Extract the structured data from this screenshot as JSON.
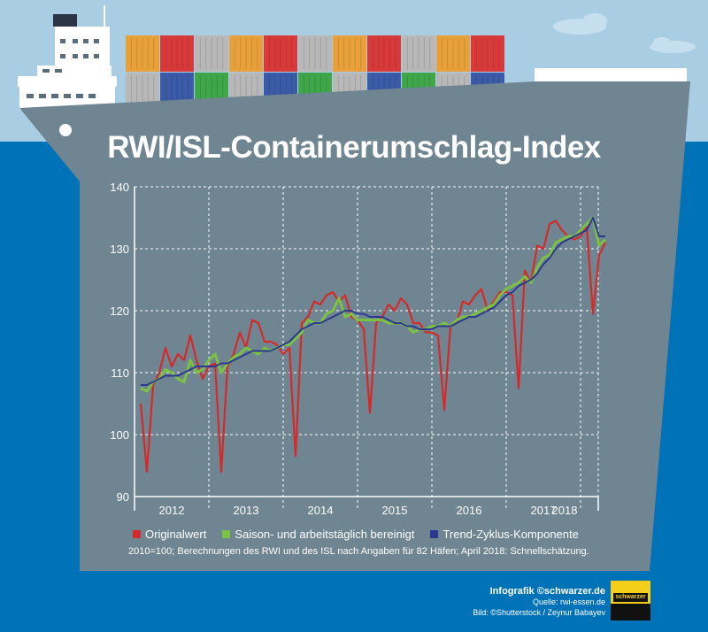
{
  "title": "RWI/ISL-Containerumschlag-Index",
  "footnote": "2010=100; Berechnungen des RWI und des ISL nach Angaben für 82 Häfen; April 2018: Schnellschätzung.",
  "credit": {
    "brand": "Infografik ©schwarzer.de",
    "source": "Quelle: rwi-essen.de",
    "image": "Bild: ©Shutterstock / Zeynur Babayev",
    "logo_text": "schwarzer"
  },
  "colors": {
    "sky": "#a9cde3",
    "sea": "#0072b8",
    "hull": "#6f8592",
    "original": "#d42a2a",
    "seasonal": "#7cc242",
    "trend": "#2b3a8f"
  },
  "chart_data": {
    "type": "line",
    "title": "RWI/ISL-Containerumschlag-Index",
    "ylim": [
      90,
      140
    ],
    "yticks": [
      90,
      100,
      110,
      120,
      130,
      140
    ],
    "year_labels": [
      "2012",
      "2013",
      "2014",
      "2015",
      "2016",
      "2017",
      "2018"
    ],
    "x_start": "2012-01",
    "x_end": "2018-04",
    "grid": true,
    "legend_position": "bottom",
    "series": [
      {
        "name": "Originalwert",
        "color": "#d42a2a",
        "values": [
          105,
          94,
          108,
          110,
          114,
          111,
          113,
          112,
          116,
          112,
          109,
          111,
          111.5,
          94,
          111,
          113,
          116.5,
          114,
          118.5,
          118,
          115,
          115,
          114.5,
          113,
          114,
          96.5,
          118,
          119,
          121.5,
          121,
          122.5,
          123,
          121.5,
          122.5,
          119,
          118.5,
          117,
          103.5,
          118,
          119,
          121,
          120,
          122,
          121,
          118,
          118,
          116.5,
          116.5,
          116,
          104,
          117.5,
          118,
          121.5,
          121,
          122.5,
          123.5,
          120,
          121.5,
          123,
          123,
          122.5,
          107.5,
          126.5,
          124.5,
          130.5,
          130,
          134,
          134.5,
          133,
          132,
          131.5,
          132,
          133.5,
          119.5,
          129,
          131
        ]
      },
      {
        "name": "Saison- und arbeitstäglich bereinigt",
        "color": "#7cc242",
        "values": [
          107.5,
          107,
          108.5,
          109,
          110.5,
          110,
          109,
          108.5,
          112,
          110,
          110.5,
          112,
          113,
          110,
          111.5,
          112.5,
          113,
          114,
          113.5,
          113,
          114,
          113.5,
          114,
          114.5,
          114.5,
          115.5,
          116.5,
          118.5,
          118,
          118,
          119.5,
          120,
          122,
          119,
          119.5,
          118.5,
          118.5,
          118.5,
          118.5,
          118.5,
          118,
          118,
          118,
          117.5,
          116.5,
          117,
          117,
          117.5,
          117.5,
          118,
          117.5,
          118.5,
          119,
          119,
          119.5,
          120,
          120.5,
          121,
          122.5,
          123.5,
          124,
          124.5,
          125.5,
          124.5,
          127,
          128.5,
          129,
          131,
          131.5,
          132,
          132,
          133,
          134,
          135,
          130.5,
          131.5
        ]
      },
      {
        "name": "Trend-Zyklus-Komponente",
        "color": "#2b3a8f",
        "values": [
          108,
          108,
          108.5,
          109,
          109.5,
          109.5,
          109.5,
          110,
          110.5,
          111,
          111,
          111,
          111,
          111.5,
          111.5,
          112,
          112.5,
          113,
          113.5,
          113.5,
          113.5,
          113.5,
          114,
          114.5,
          115,
          116,
          117,
          117.5,
          118,
          118,
          118.5,
          119,
          119.5,
          120,
          120,
          119.5,
          119.5,
          119,
          119,
          119,
          118.5,
          118,
          118,
          117.5,
          117.5,
          117,
          117,
          117,
          117.5,
          117.5,
          117.5,
          118,
          118.5,
          119,
          119,
          119.5,
          120,
          120.5,
          121.5,
          122.5,
          123,
          124,
          124.5,
          125,
          126,
          127.5,
          128.5,
          130,
          131,
          131.5,
          132,
          132.5,
          133,
          135,
          132,
          132
        ]
      }
    ]
  }
}
